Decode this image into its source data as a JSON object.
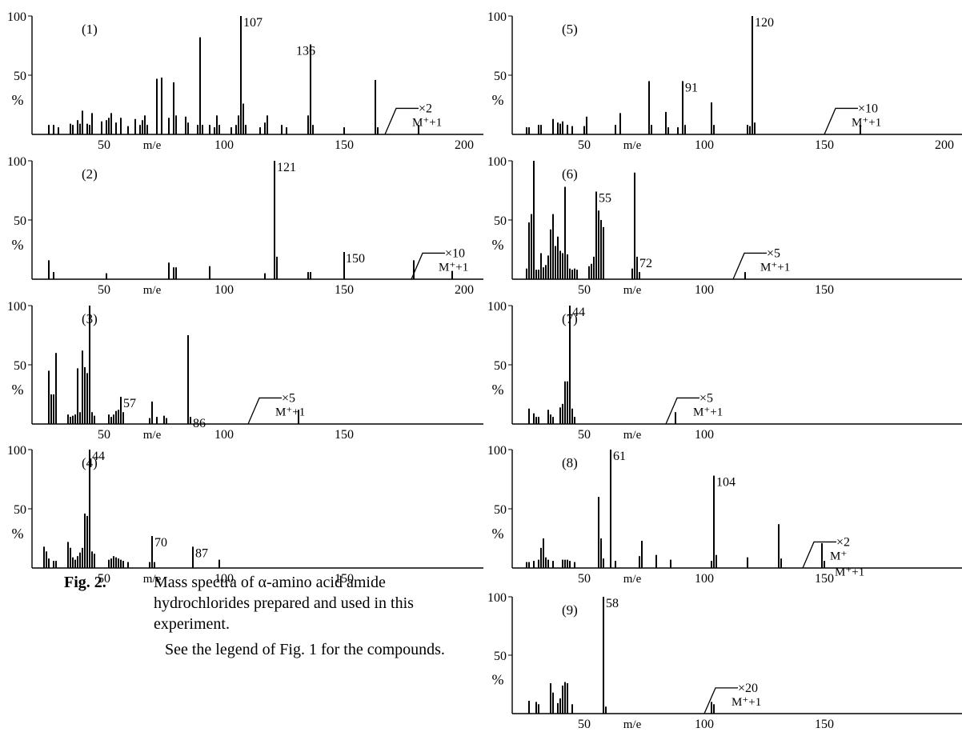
{
  "figure_caption": {
    "label": "Fig. 2.",
    "text": "Mass spectra of α-amino acid amide hydrochlorides prepared and used in this experiment.",
    "note": "See the legend of Fig. 1 for the compounds."
  },
  "chart_data": [
    {
      "type": "bar",
      "panel_label": "(1)",
      "xlabel": "m/e",
      "ylabel": "%",
      "yticks": [
        "100",
        "50"
      ],
      "xlim": [
        20,
        208
      ],
      "xticks": [
        "50",
        "100",
        "150",
        "200"
      ],
      "ylim": [
        0,
        100
      ],
      "peak_labels": [
        "107",
        "136"
      ],
      "inset_label": "×2",
      "inset_ion": "M⁺+1",
      "inset_start": 167,
      "x": [
        27,
        29,
        31,
        36,
        37,
        39,
        40,
        41,
        43,
        44,
        45,
        49,
        51,
        52,
        53,
        55,
        57,
        60,
        63,
        65,
        66,
        67,
        68,
        72,
        74,
        77,
        79,
        80,
        84,
        85,
        89,
        90,
        91,
        94,
        96,
        97,
        98,
        103,
        105,
        106,
        107,
        108,
        109,
        115,
        117,
        118,
        124,
        126,
        135,
        136,
        137,
        150,
        163,
        164,
        181
      ],
      "values": [
        8,
        8,
        6,
        9,
        8,
        12,
        9,
        20,
        9,
        8,
        18,
        11,
        12,
        14,
        18,
        10,
        14,
        7,
        13,
        8,
        12,
        16,
        8,
        47,
        48,
        14,
        44,
        16,
        15,
        10,
        8,
        82,
        8,
        8,
        6,
        16,
        8,
        6,
        8,
        16,
        100,
        26,
        8,
        6,
        10,
        16,
        8,
        6,
        16,
        76,
        8,
        6,
        46,
        6,
        8
      ]
    },
    {
      "type": "bar",
      "panel_label": "(2)",
      "xlabel": "m/e",
      "ylabel": "%",
      "yticks": [
        "100",
        "50"
      ],
      "xlim": [
        20,
        208
      ],
      "xticks": [
        "50",
        "100",
        "150",
        "200"
      ],
      "ylim": [
        0,
        100
      ],
      "peak_labels": [
        "121",
        "150"
      ],
      "inset_label": "×10",
      "inset_ion": "M⁺+1",
      "inset_start": 178,
      "x": [
        27,
        29,
        51,
        77,
        79,
        80,
        94,
        117,
        121,
        122,
        135,
        136,
        150,
        179,
        195
      ],
      "values": [
        16,
        6,
        5,
        14,
        10,
        10,
        11,
        5,
        100,
        19,
        6,
        6,
        23,
        16,
        7
      ]
    },
    {
      "type": "bar",
      "panel_label": "(3)",
      "xlabel": "m/e",
      "ylabel": "%",
      "yticks": [
        "100",
        "50"
      ],
      "xlim": [
        20,
        208
      ],
      "xticks": [
        "50",
        "100",
        "150"
      ],
      "ylim": [
        0,
        100
      ],
      "peak_labels": [
        "57",
        "86"
      ],
      "inset_label": "×5",
      "inset_ion": "M⁺+1",
      "inset_start": 110,
      "x": [
        27,
        28,
        29,
        30,
        35,
        36,
        37,
        38,
        39,
        40,
        41,
        42,
        43,
        44,
        45,
        46,
        52,
        53,
        54,
        55,
        56,
        57,
        58,
        69,
        70,
        72,
        75,
        76,
        85,
        86,
        131
      ],
      "values": [
        45,
        25,
        25,
        60,
        8,
        6,
        7,
        8,
        47,
        10,
        62,
        48,
        43,
        100,
        10,
        7,
        8,
        6,
        8,
        11,
        12,
        23,
        10,
        5,
        19,
        6,
        7,
        5,
        75,
        6,
        12
      ]
    },
    {
      "type": "bar",
      "panel_label": "(4)",
      "xlabel": "m/e",
      "ylabel": "%",
      "yticks": [
        "100",
        "50"
      ],
      "xlim": [
        20,
        208
      ],
      "xticks": [
        "50",
        "100",
        "150"
      ],
      "ylim": [
        0,
        100
      ],
      "peak_labels": [
        "44",
        "70",
        "87"
      ],
      "x": [
        25,
        26,
        27,
        29,
        30,
        35,
        36,
        37,
        38,
        39,
        40,
        41,
        42,
        43,
        44,
        45,
        46,
        52,
        53,
        54,
        55,
        56,
        57,
        58,
        60,
        69,
        70,
        71,
        87,
        98
      ],
      "values": [
        18,
        14,
        8,
        6,
        6,
        22,
        17,
        9,
        7,
        10,
        13,
        17,
        46,
        44,
        100,
        14,
        12,
        7,
        8,
        10,
        9,
        8,
        7,
        6,
        5,
        5,
        27,
        5,
        18,
        7
      ]
    },
    {
      "type": "bar",
      "panel_label": "(5)",
      "xlabel": "m/e",
      "ylabel": "%",
      "yticks": [
        "100",
        "50"
      ],
      "xlim": [
        20,
        208
      ],
      "xticks": [
        "50",
        "100",
        "150",
        "200"
      ],
      "ylim": [
        0,
        100
      ],
      "peak_labels": [
        "91",
        "120"
      ],
      "inset_label": "×10",
      "inset_ion": "M⁺+1",
      "inset_start": 150,
      "x": [
        26,
        27,
        31,
        32,
        37,
        39,
        40,
        41,
        43,
        45,
        50,
        51,
        63,
        65,
        77,
        78,
        84,
        85,
        89,
        91,
        92,
        103,
        104,
        118,
        119,
        120,
        121,
        165
      ],
      "values": [
        6,
        6,
        8,
        8,
        13,
        10,
        9,
        11,
        8,
        7,
        7,
        15,
        8,
        18,
        45,
        8,
        19,
        6,
        6,
        45,
        8,
        27,
        8,
        8,
        7,
        100,
        10,
        8
      ]
    },
    {
      "type": "bar",
      "panel_label": "(6)",
      "xlabel": "m/e",
      "ylabel": "%",
      "yticks": [
        "100",
        "50"
      ],
      "xlim": [
        20,
        208
      ],
      "xticks": [
        "50",
        "100",
        "150"
      ],
      "ylim": [
        0,
        100
      ],
      "peak_labels": [
        "55",
        "72"
      ],
      "inset_label": "×5",
      "inset_ion": "M⁺+1",
      "inset_start": 112,
      "x": [
        26,
        27,
        28,
        29,
        30,
        31,
        32,
        33,
        34,
        35,
        36,
        37,
        38,
        39,
        40,
        41,
        42,
        43,
        44,
        45,
        46,
        47,
        52,
        53,
        54,
        55,
        56,
        57,
        58,
        70,
        71,
        72,
        73,
        117
      ],
      "values": [
        9,
        48,
        55,
        100,
        8,
        8,
        22,
        10,
        12,
        20,
        42,
        55,
        28,
        36,
        24,
        22,
        78,
        21,
        9,
        8,
        9,
        8,
        11,
        13,
        19,
        74,
        58,
        50,
        44,
        9,
        90,
        19,
        6,
        6
      ]
    },
    {
      "type": "bar",
      "panel_label": "(7)",
      "xlabel": "m/e",
      "ylabel": "%",
      "yticks": [
        "100",
        "50"
      ],
      "xlim": [
        20,
        208
      ],
      "xticks": [
        "50",
        "100"
      ],
      "ylim": [
        0,
        100
      ],
      "peak_labels": [
        "44"
      ],
      "inset_label": "×5",
      "inset_ion": "M⁺+1",
      "inset_start": 84,
      "x": [
        27,
        29,
        30,
        31,
        35,
        36,
        37,
        40,
        41,
        42,
        43,
        44,
        45,
        46,
        88
      ],
      "values": [
        13,
        9,
        6,
        6,
        12,
        8,
        6,
        14,
        17,
        36,
        36,
        100,
        13,
        6,
        10
      ]
    },
    {
      "type": "bar",
      "panel_label": "(8)",
      "xlabel": "m/e",
      "ylabel": "%",
      "yticks": [
        "100",
        "50"
      ],
      "xlim": [
        20,
        208
      ],
      "xticks": [
        "50",
        "100",
        "150"
      ],
      "ylim": [
        0,
        100
      ],
      "peak_labels": [
        "61",
        "104"
      ],
      "inset_label": "×2",
      "inset_ion": "M⁺",
      "inset_ion2": "M⁺+1",
      "inset_start": 141,
      "x": [
        26,
        27,
        29,
        31,
        32,
        33,
        34,
        35,
        37,
        41,
        42,
        43,
        44,
        46,
        56,
        57,
        58,
        61,
        63,
        73,
        74,
        80,
        86,
        103,
        104,
        105,
        118,
        131,
        132,
        149,
        150
      ],
      "values": [
        5,
        5,
        6,
        7,
        17,
        25,
        9,
        7,
        6,
        7,
        7,
        7,
        6,
        5,
        60,
        25,
        8,
        100,
        6,
        10,
        23,
        11,
        7,
        6,
        78,
        11,
        9,
        37,
        8,
        21,
        6
      ],
      "inset_peaks": {
        "x": [
          149,
          150
        ],
        "values": [
          21,
          6
        ]
      }
    },
    {
      "type": "bar",
      "panel_label": "(9)",
      "xlabel": "m/e",
      "ylabel": "%",
      "yticks": [
        "100",
        "50"
      ],
      "xlim": [
        20,
        208
      ],
      "xticks": [
        "50",
        "100",
        "150"
      ],
      "ylim": [
        0,
        100
      ],
      "peak_labels": [
        "58"
      ],
      "inset_label": "×20",
      "inset_ion": "M⁺+1",
      "inset_start": 100,
      "x": [
        27,
        30,
        31,
        36,
        37,
        39,
        40,
        41,
        42,
        43,
        45,
        58,
        59,
        103,
        104
      ],
      "values": [
        11,
        10,
        8,
        26,
        18,
        9,
        13,
        24,
        27,
        26,
        8,
        100,
        6,
        10,
        8
      ]
    }
  ]
}
